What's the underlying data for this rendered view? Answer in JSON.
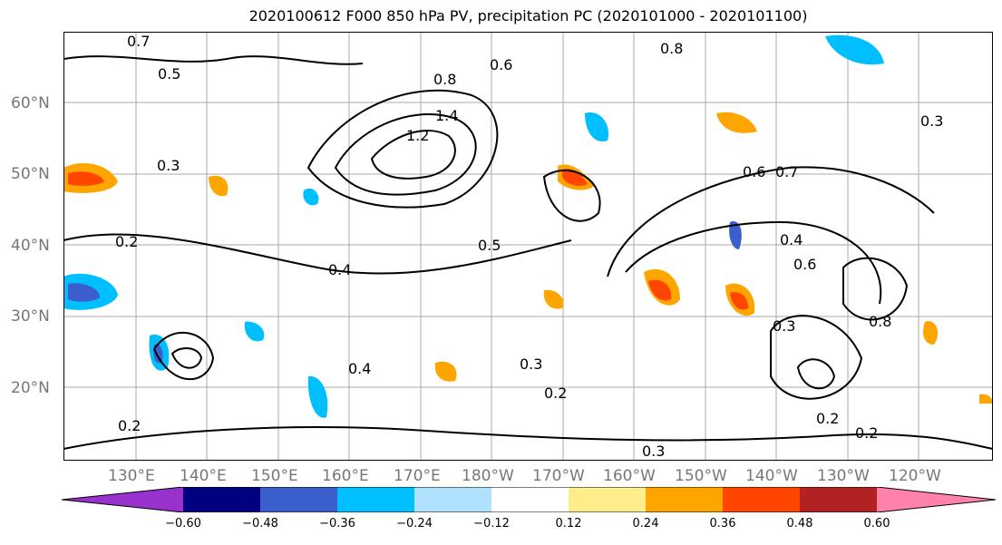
{
  "title": "2020100612 F000 850 hPa PV, precipitation PC (2020101000 - 2020101100)",
  "map": {
    "lat_labels": [
      "60°N",
      "50°N",
      "40°N",
      "30°N",
      "20°N"
    ],
    "lon_labels": [
      "130°E",
      "140°E",
      "150°E",
      "160°E",
      "170°E",
      "180°W",
      "170°W",
      "160°W",
      "150°W",
      "140°W",
      "130°W",
      "120°W"
    ],
    "contour_labels": [
      "0.7",
      "0.5",
      "0.6",
      "0.8",
      "1.4",
      "1.2",
      "0.3",
      "0.2",
      "0.4",
      "0.5",
      "0.6",
      "0.7",
      "0.8",
      "0.3",
      "0.4",
      "0.2",
      "0.3",
      "0.2",
      "0.3",
      "0.4",
      "0.6",
      "0.8",
      "0.3",
      "0.2",
      "0.2"
    ]
  },
  "colorbar": {
    "tick_labels": [
      "−0.60",
      "−0.48",
      "−0.36",
      "−0.24",
      "−0.12",
      "0.12",
      "0.24",
      "0.36",
      "0.48",
      "0.60"
    ],
    "colors": [
      "#9932cc",
      "#000080",
      "#3a5fcd",
      "#00bfff",
      "#b0e2ff",
      "#ffffff",
      "#ffec8b",
      "#ffa500",
      "#ff4500",
      "#b22222",
      "#ff82ab"
    ]
  }
}
